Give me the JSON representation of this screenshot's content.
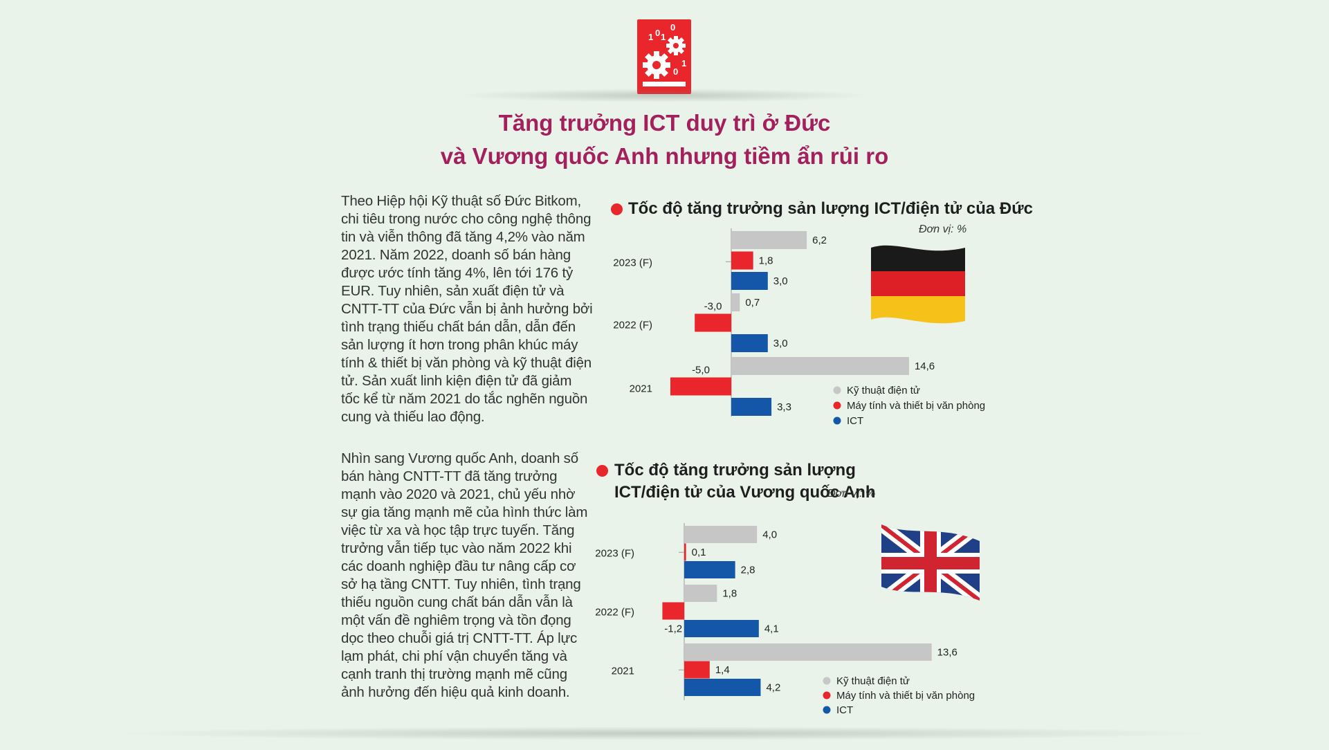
{
  "title_line1": "Tăng trưởng ICT duy trì ở Đức",
  "title_line2": "và Vương quốc Anh nhưng tiềm ẩn rủi ro",
  "logo_digits": [
    "1",
    "0",
    "1",
    "0",
    "1",
    "0"
  ],
  "paragraph1": "Theo Hiệp hội Kỹ thuật số Đức Bitkom, chi tiêu trong nước cho công nghệ thông tin và viễn thông đã tăng 4,2% vào năm 2021. Năm 2022, doanh số bán hàng được ước tính tăng 4%, lên tới 176 tỷ EUR. Tuy nhiên, sản xuất điện tử và CNTT-TT của Đức vẫn bị ảnh hưởng bởi tình trạng thiếu chất bán dẫn, dẫn đến sản lượng ít hơn trong phân khúc máy tính & thiết bị văn phòng và kỹ thuật điện tử. Sản xuất linh kiện điện tử đã giảm tốc kể từ năm 2021 do tắc nghẽn nguồn cung và thiếu lao động.",
  "paragraph2": "Nhìn sang Vương quốc Anh, doanh số bán hàng CNTT-TT đã tăng trưởng mạnh vào 2020 và 2021, chủ yếu nhờ sự gia tăng mạnh mẽ của hình thức làm việc từ xa và học tập trực tuyến. Tăng trưởng vẫn tiếp tục vào năm 2022 khi các doanh nghiệp đầu tư nâng cấp cơ sở hạ tầng CNTT. Tuy nhiên, tình trạng thiếu nguồn cung chất bán dẫn vẫn là một vấn đề nghiêm trọng và tồn đọng dọc theo chuỗi giá trị CNTT-TT. Áp lực lạm phát, chi phí vận chuyển tăng và cạnh tranh thị trường mạnh mẽ cũng ảnh hưởng đến hiệu quả kinh doanh.",
  "colors": {
    "title": "#a3205c",
    "gray_series": "#c6c6c6",
    "red_series": "#e8262b",
    "blue_series": "#1457a8"
  },
  "chart_data": [
    {
      "type": "bar",
      "orientation": "horizontal",
      "title": "Tốc độ tăng trưởng sản lượng ICT/điện tử của Đức",
      "unit": "Đơn vị: %",
      "flag": "germany-flag",
      "categories": [
        "2023 (F)",
        "2022 (F)",
        "2021"
      ],
      "series": [
        {
          "name": "Kỹ thuật điện tử",
          "color": "#c6c6c6",
          "values": [
            6.2,
            0.7,
            14.6
          ],
          "labels": [
            "6,2",
            "0,7",
            "14,6"
          ]
        },
        {
          "name": "Máy tính và thiết bị văn phòng",
          "color": "#e8262b",
          "values": [
            1.8,
            -3.0,
            -5.0
          ],
          "labels": [
            "1,8",
            "-3,0",
            "-5,0"
          ]
        },
        {
          "name": "ICT",
          "color": "#1457a8",
          "values": [
            3.0,
            3.0,
            3.3
          ],
          "labels": [
            "3,0",
            "3,0",
            "3,3"
          ]
        }
      ],
      "legend_position": "bottom-right"
    },
    {
      "type": "bar",
      "orientation": "horizontal",
      "title_line1": "Tốc độ tăng trưởng sản lượng",
      "title_line2": "ICT/điện tử của Vương quốc Anh",
      "unit": "Đơn vị: %",
      "flag": "uk-flag",
      "categories": [
        "2023 (F)",
        "2022 (F)",
        "2021"
      ],
      "series": [
        {
          "name": "Kỹ thuật điện tử",
          "color": "#c6c6c6",
          "values": [
            4.0,
            1.8,
            13.6
          ],
          "labels": [
            "4,0",
            "1,8",
            "13,6"
          ]
        },
        {
          "name": "Máy tính và thiết bị văn phòng",
          "color": "#e8262b",
          "values": [
            0.1,
            -1.2,
            1.4
          ],
          "labels": [
            "0,1",
            "-1,2",
            "1,4"
          ]
        },
        {
          "name": "ICT",
          "color": "#1457a8",
          "values": [
            2.8,
            4.1,
            4.2
          ],
          "labels": [
            "2,8",
            "4,1",
            "4,2"
          ]
        }
      ],
      "legend_position": "bottom-right"
    }
  ]
}
